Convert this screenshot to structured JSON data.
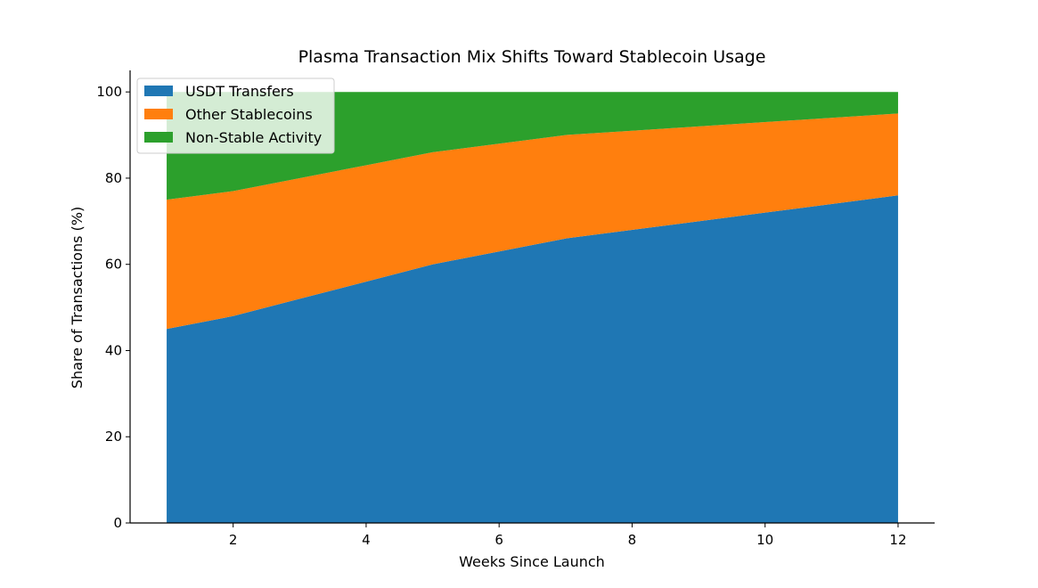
{
  "chart_data": {
    "type": "area",
    "stacked": true,
    "title": "Plasma Transaction Mix Shifts Toward Stablecoin Usage",
    "xlabel": "Weeks Since Launch",
    "ylabel": "Share of Transactions (%)",
    "x": [
      1,
      2,
      3,
      4,
      5,
      6,
      7,
      8,
      9,
      10,
      11,
      12
    ],
    "xlim": [
      0.45,
      12.55
    ],
    "ylim": [
      0,
      105
    ],
    "xticks": [
      2,
      4,
      6,
      8,
      10,
      12
    ],
    "yticks": [
      0,
      20,
      40,
      60,
      80,
      100
    ],
    "grid": false,
    "legend_position": "top-left",
    "series": [
      {
        "name": "USDT Transfers",
        "color": "#1f77b4",
        "values": [
          45,
          48,
          52,
          56,
          60,
          63,
          66,
          68,
          70,
          72,
          74,
          76
        ]
      },
      {
        "name": "Other Stablecoins",
        "color": "#ff7f0e",
        "values": [
          30,
          29,
          28,
          27,
          26,
          25,
          24,
          23,
          22,
          21,
          20,
          19
        ]
      },
      {
        "name": "Non-Stable Activity",
        "color": "#2ca02c",
        "values": [
          25,
          23,
          20,
          17,
          14,
          12,
          10,
          9,
          8,
          7,
          6,
          5
        ]
      }
    ]
  }
}
